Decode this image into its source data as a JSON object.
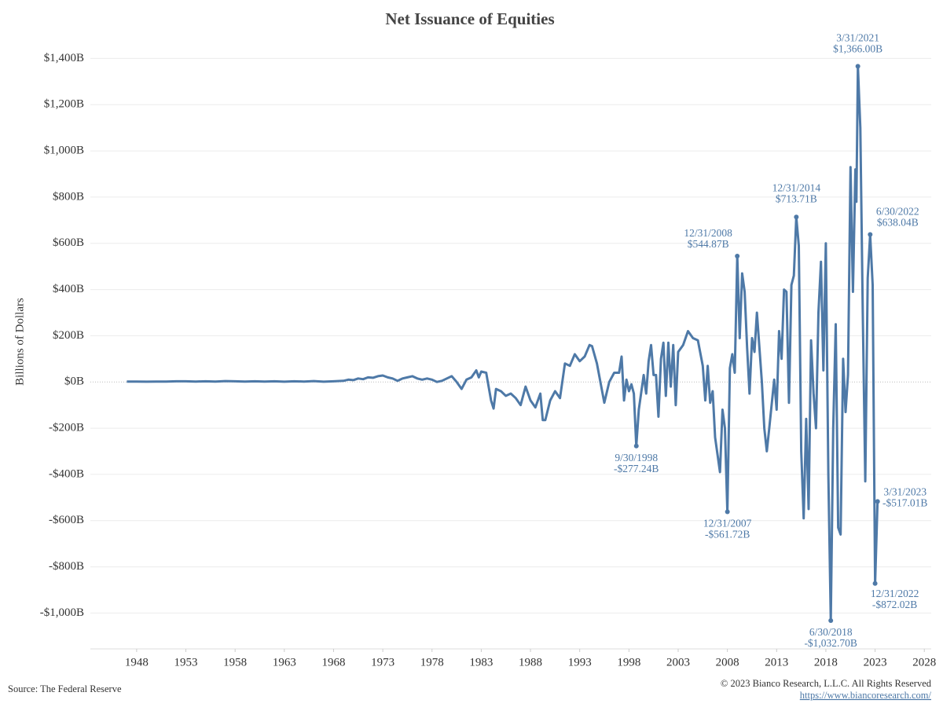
{
  "chart_data": {
    "type": "line",
    "title": "Net Issuance of Equities",
    "y_label": "Billions of Dollars",
    "source": "Source: The Federal Reserve",
    "copyright": "© 2023 Bianco Research, L.L.C. All Rights Reserved",
    "url": "https://www.biancoresearch.com/",
    "xlim": [
      1943.3,
      2028.7
    ],
    "xticks": [
      1948,
      1953,
      1958,
      1963,
      1968,
      1973,
      1978,
      1983,
      1988,
      1993,
      1998,
      2003,
      2008,
      2013,
      2018,
      2023,
      2028
    ],
    "ylim": [
      -1155,
      1500
    ],
    "yticks": [
      {
        "value": -1000,
        "label": "-$1,000B"
      },
      {
        "value": -800,
        "label": "-$800B"
      },
      {
        "value": -600,
        "label": "-$600B"
      },
      {
        "value": -400,
        "label": "-$400B"
      },
      {
        "value": -200,
        "label": "-$200B"
      },
      {
        "value": 0,
        "label": "$0B"
      },
      {
        "value": 200,
        "label": "$200B"
      },
      {
        "value": 400,
        "label": "$400B"
      },
      {
        "value": 600,
        "label": "$600B"
      },
      {
        "value": 800,
        "label": "$800B"
      },
      {
        "value": 1000,
        "label": "$1,000B"
      },
      {
        "value": 1200,
        "label": "$1,200B"
      },
      {
        "value": 1400,
        "label": "$1,400B"
      }
    ],
    "grid": true,
    "x": [
      1947,
      1948,
      1949,
      1950,
      1951,
      1952,
      1953,
      1954,
      1955,
      1956,
      1957,
      1958,
      1959,
      1960,
      1961,
      1962,
      1963,
      1964,
      1965,
      1966,
      1967,
      1968,
      1969,
      1969.5,
      1970,
      1970.5,
      1971,
      1971.5,
      1972,
      1972.5,
      1973,
      1973.5,
      1974,
      1974.5,
      1975,
      1975.5,
      1976,
      1976.5,
      1977,
      1977.5,
      1978,
      1978.5,
      1979,
      1979.5,
      1980,
      1980.5,
      1981,
      1981.5,
      1982,
      1982.5,
      1982.75,
      1983,
      1983.5,
      1984,
      1984.25,
      1984.5,
      1985,
      1985.5,
      1986,
      1986.5,
      1987,
      1987.5,
      1988,
      1988.5,
      1989,
      1989.25,
      1989.5,
      1990,
      1990.5,
      1991,
      1991.5,
      1992,
      1992.5,
      1993,
      1993.5,
      1994,
      1994.25,
      1994.75,
      1995.5,
      1996,
      1996.5,
      1997,
      1997.25,
      1997.5,
      1997.75,
      1998,
      1998.25,
      1998.5,
      1998.75,
      1999,
      1999.5,
      1999.75,
      2000,
      2000.25,
      2000.5,
      2000.75,
      2001,
      2001.25,
      2001.5,
      2001.75,
      2002,
      2002.25,
      2002.5,
      2002.75,
      2003,
      2003.5,
      2004,
      2004.5,
      2005,
      2005.5,
      2005.75,
      2006,
      2006.25,
      2006.5,
      2006.75,
      2007.25,
      2007.5,
      2007.75,
      2008,
      2008.25,
      2008.5,
      2008.75,
      2009,
      2009.25,
      2009.5,
      2009.75,
      2010,
      2010.25,
      2010.5,
      2010.75,
      2011,
      2011.5,
      2011.75,
      2012,
      2012.25,
      2012.75,
      2013,
      2013.25,
      2013.5,
      2013.75,
      2014,
      2014.25,
      2014.5,
      2014.75,
      2015,
      2015.25,
      2015.5,
      2015.75,
      2016,
      2016.25,
      2016.5,
      2016.75,
      2017,
      2017.25,
      2017.5,
      2017.75,
      2018,
      2018.25,
      2018.5,
      2018.75,
      2019,
      2019.25,
      2019.5,
      2019.75,
      2020,
      2020.25,
      2020.5,
      2020.75,
      2021,
      2021.1,
      2021.25,
      2021.5,
      2021.75,
      2022,
      2022.25,
      2022.5,
      2022.75,
      2023,
      2023.25
    ],
    "series": [
      {
        "name": "Net Issuance of Equities",
        "color": "#4e79a7",
        "values": [
          2,
          2,
          1,
          2,
          2,
          3,
          3,
          2,
          3,
          2,
          4,
          3,
          2,
          3,
          2,
          3,
          1,
          3,
          2,
          4,
          1,
          3,
          5,
          10,
          8,
          15,
          12,
          20,
          18,
          25,
          28,
          20,
          15,
          5,
          15,
          20,
          25,
          15,
          10,
          15,
          10,
          0,
          5,
          15,
          25,
          0,
          -30,
          10,
          20,
          50,
          20,
          45,
          40,
          -80,
          -115,
          -30,
          -40,
          -60,
          -50,
          -70,
          -100,
          -20,
          -80,
          -110,
          -50,
          -165,
          -165,
          -80,
          -40,
          -70,
          80,
          70,
          120,
          90,
          110,
          160,
          155,
          80,
          -90,
          0,
          40,
          40,
          110,
          -80,
          10,
          -40,
          -10,
          -50,
          -277.24,
          -120,
          30,
          -50,
          90,
          160,
          30,
          30,
          -150,
          100,
          170,
          -60,
          170,
          -20,
          160,
          -100,
          130,
          160,
          220,
          190,
          180,
          70,
          -80,
          70,
          -90,
          -40,
          -240,
          -390,
          -120,
          -200,
          -561.72,
          60,
          120,
          40,
          544.87,
          190,
          470,
          390,
          150,
          -50,
          190,
          130,
          300,
          0,
          -200,
          -300,
          -200,
          10,
          -120,
          220,
          100,
          400,
          390,
          -90,
          420,
          460,
          713.71,
          590,
          -300,
          -590,
          -160,
          -550,
          180,
          -50,
          -200,
          300,
          520,
          50,
          600,
          -400,
          -1032.7,
          -200,
          250,
          -630,
          -660,
          100,
          -130,
          30,
          930,
          390,
          920,
          780,
          1366,
          1100,
          300,
          -430,
          450,
          638.04,
          420,
          -872.02,
          -517.01
        ]
      }
    ],
    "annotations": [
      {
        "x": 1998.75,
        "date": "9/30/1998",
        "label": "-$277.24B"
      },
      {
        "x": 2008,
        "date": "12/31/2007",
        "label": "-$561.72B"
      },
      {
        "x": 2009,
        "date": "12/31/2008",
        "label": "$544.87B"
      },
      {
        "x": 2015,
        "date": "12/31/2014",
        "label": "$713.71B"
      },
      {
        "x": 2018.5,
        "date": "6/30/2018",
        "label": "-$1,032.70B"
      },
      {
        "x": 2021.25,
        "date": "3/31/2021",
        "label": "$1,366.00B"
      },
      {
        "x": 2022.5,
        "date": "6/30/2022",
        "label": "$638.04B"
      },
      {
        "x": 2023,
        "date": "12/31/2022",
        "label": "-$872.02B"
      },
      {
        "x": 2023.25,
        "date": "3/31/2023",
        "label": "-$517.01B"
      }
    ]
  }
}
